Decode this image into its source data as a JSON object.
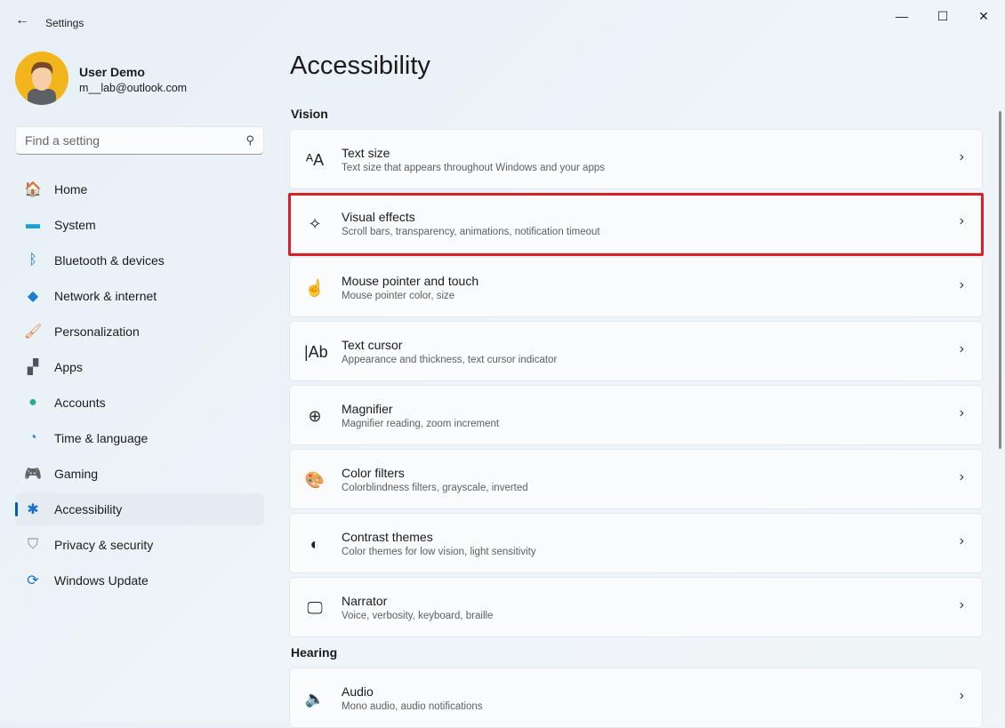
{
  "window": {
    "title": "Settings",
    "controls": {
      "minimize": "—",
      "maximize": "☐",
      "close": "✕"
    }
  },
  "user": {
    "name": "User Demo",
    "email": "m__lab@outlook.com"
  },
  "search": {
    "placeholder": "Find a setting"
  },
  "sidebar": {
    "items": [
      {
        "label": "Home",
        "icon": "home-icon",
        "glyph": "🏠",
        "color": "#e8813a"
      },
      {
        "label": "System",
        "icon": "system-icon",
        "glyph": "▬",
        "color": "#1a9ed8"
      },
      {
        "label": "Bluetooth & devices",
        "icon": "bluetooth-icon",
        "glyph": "ᛒ",
        "color": "#1872d8"
      },
      {
        "label": "Network & internet",
        "icon": "wifi-icon",
        "glyph": "◆",
        "color": "#1a7fd0"
      },
      {
        "label": "Personalization",
        "icon": "brush-icon",
        "glyph": "🖌",
        "color": "#e07a30"
      },
      {
        "label": "Apps",
        "icon": "apps-icon",
        "glyph": "▞",
        "color": "#4a5560"
      },
      {
        "label": "Accounts",
        "icon": "accounts-icon",
        "glyph": "●",
        "color": "#2aa98f"
      },
      {
        "label": "Time & language",
        "icon": "clock-globe-icon",
        "glyph": "◔",
        "color": "#2b86d0"
      },
      {
        "label": "Gaming",
        "icon": "gamepad-icon",
        "glyph": "🎮",
        "color": "#8a929a"
      },
      {
        "label": "Accessibility",
        "icon": "accessibility-icon",
        "glyph": "✱",
        "color": "#1a6fc8",
        "selected": true
      },
      {
        "label": "Privacy & security",
        "icon": "shield-icon",
        "glyph": "⛉",
        "color": "#7c858c"
      },
      {
        "label": "Windows Update",
        "icon": "update-icon",
        "glyph": "⟳",
        "color": "#1a73c8"
      }
    ]
  },
  "main": {
    "title": "Accessibility",
    "sections": [
      {
        "label": "Vision",
        "items": [
          {
            "title": "Text size",
            "subtitle": "Text size that appears throughout Windows and your apps",
            "icon": "text-size-icon",
            "glyph": "ᴬA"
          },
          {
            "title": "Visual effects",
            "subtitle": "Scroll bars, transparency, animations, notification timeout",
            "icon": "sparkle-icon",
            "glyph": "✧",
            "highlighted": true
          },
          {
            "title": "Mouse pointer and touch",
            "subtitle": "Mouse pointer color, size",
            "icon": "pointer-touch-icon",
            "glyph": "☝"
          },
          {
            "title": "Text cursor",
            "subtitle": "Appearance and thickness, text cursor indicator",
            "icon": "text-cursor-icon",
            "glyph": "|Ab"
          },
          {
            "title": "Magnifier",
            "subtitle": "Magnifier reading, zoom increment",
            "icon": "magnifier-icon",
            "glyph": "⊕"
          },
          {
            "title": "Color filters",
            "subtitle": "Colorblindness filters, grayscale, inverted",
            "icon": "palette-icon",
            "glyph": "🎨"
          },
          {
            "title": "Contrast themes",
            "subtitle": "Color themes for low vision, light sensitivity",
            "icon": "contrast-icon",
            "glyph": "◐"
          },
          {
            "title": "Narrator",
            "subtitle": "Voice, verbosity, keyboard, braille",
            "icon": "narrator-icon",
            "glyph": "🖵"
          }
        ]
      },
      {
        "label": "Hearing",
        "items": [
          {
            "title": "Audio",
            "subtitle": "Mono audio, audio notifications",
            "icon": "speaker-icon",
            "glyph": "🔈"
          }
        ]
      }
    ]
  },
  "colors": {
    "accent": "#005fb8",
    "highlight": "#d8202a"
  }
}
